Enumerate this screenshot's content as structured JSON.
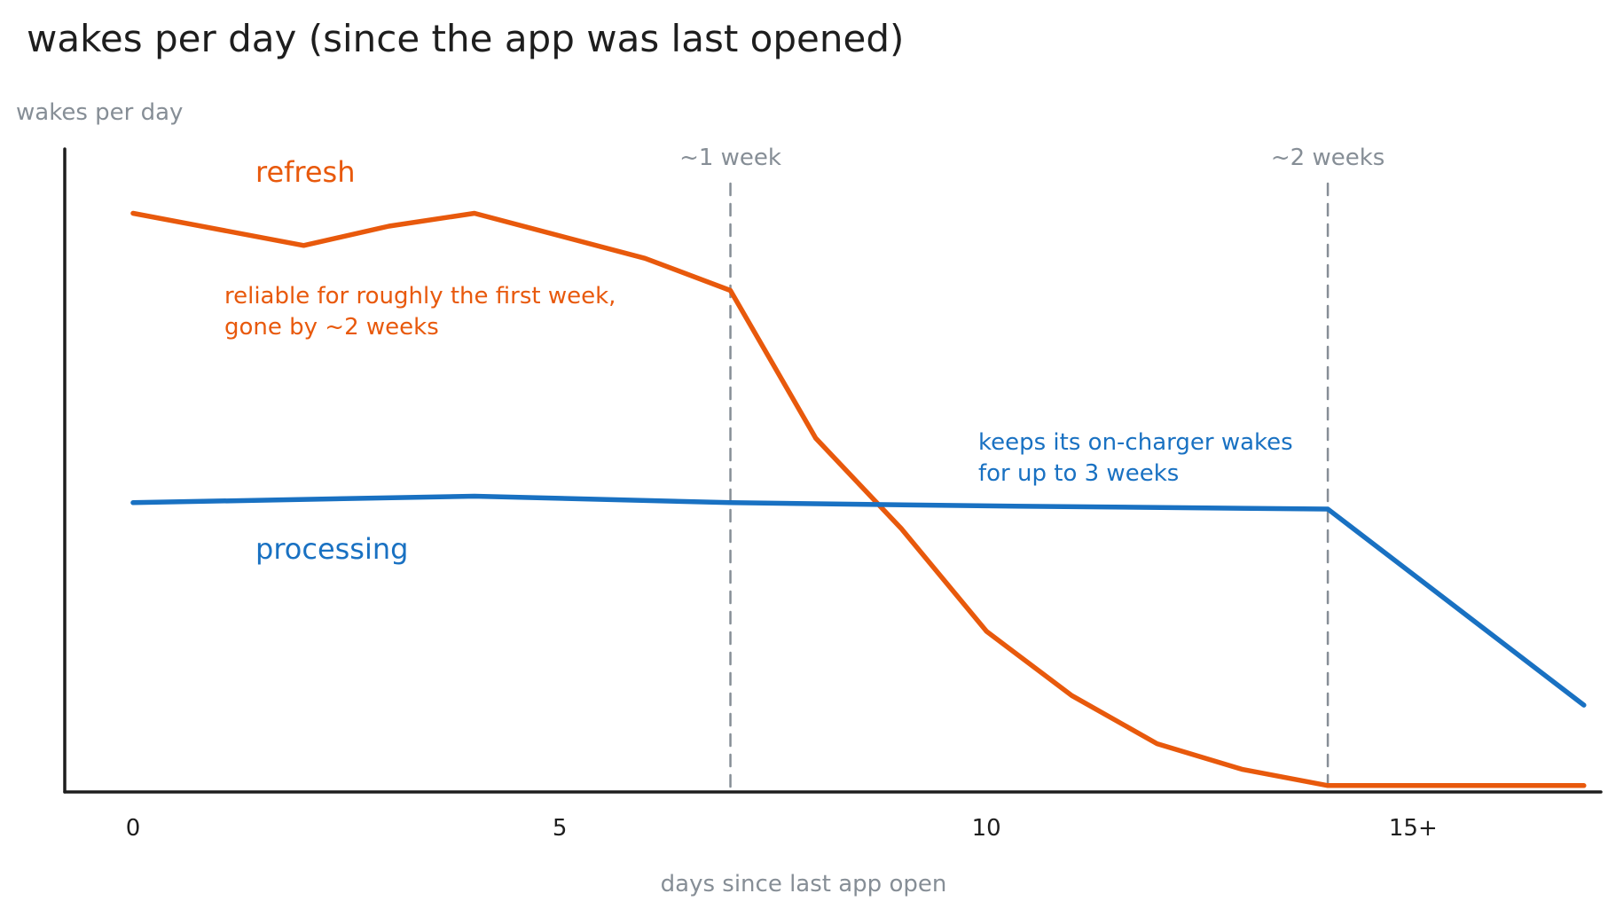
{
  "chart_data": {
    "type": "line",
    "title": "wakes per day (since the app was last opened)",
    "ylabel": "wakes per day",
    "xlabel": "days since last app open",
    "x_ticks": [
      {
        "value": 0,
        "label": "0"
      },
      {
        "value": 5,
        "label": "5"
      },
      {
        "value": 10,
        "label": "10"
      },
      {
        "value": 15,
        "label": "15+"
      }
    ],
    "xlim": [
      -0.8,
      17.2
    ],
    "ylim": [
      0,
      10
    ],
    "grid": false,
    "legend": "none",
    "series": [
      {
        "name": "refresh",
        "color": "#e8590c",
        "points": [
          {
            "x": 0,
            "y": 9.0
          },
          {
            "x": 2,
            "y": 8.5
          },
          {
            "x": 3,
            "y": 8.8
          },
          {
            "x": 4,
            "y": 9.0
          },
          {
            "x": 6,
            "y": 8.3
          },
          {
            "x": 7,
            "y": 7.8
          },
          {
            "x": 8,
            "y": 5.5
          },
          {
            "x": 9,
            "y": 4.1
          },
          {
            "x": 10,
            "y": 2.5
          },
          {
            "x": 11,
            "y": 1.5
          },
          {
            "x": 12,
            "y": 0.75
          },
          {
            "x": 13,
            "y": 0.35
          },
          {
            "x": 14,
            "y": 0.1
          },
          {
            "x": 17,
            "y": 0.1
          }
        ]
      },
      {
        "name": "processing",
        "color": "#1971c2",
        "points": [
          {
            "x": 0,
            "y": 4.5
          },
          {
            "x": 4,
            "y": 4.6
          },
          {
            "x": 7,
            "y": 4.5
          },
          {
            "x": 10,
            "y": 4.45
          },
          {
            "x": 14,
            "y": 4.4
          },
          {
            "x": 17,
            "y": 1.35
          }
        ]
      }
    ],
    "markers": [
      {
        "x": 7,
        "label": "~1 week"
      },
      {
        "x": 14,
        "label": "~2 weeks"
      }
    ],
    "annotations": [
      {
        "series": "refresh",
        "lines": [
          "reliable for roughly the first week,",
          "gone by ~2 weeks"
        ]
      },
      {
        "series": "processing",
        "lines": [
          "keeps its on-charger wakes",
          "for up to 3 weeks"
        ]
      }
    ],
    "colors": {
      "axis": "#1e1e1e",
      "marker": "#868e96",
      "muted_text": "#868e96"
    }
  }
}
